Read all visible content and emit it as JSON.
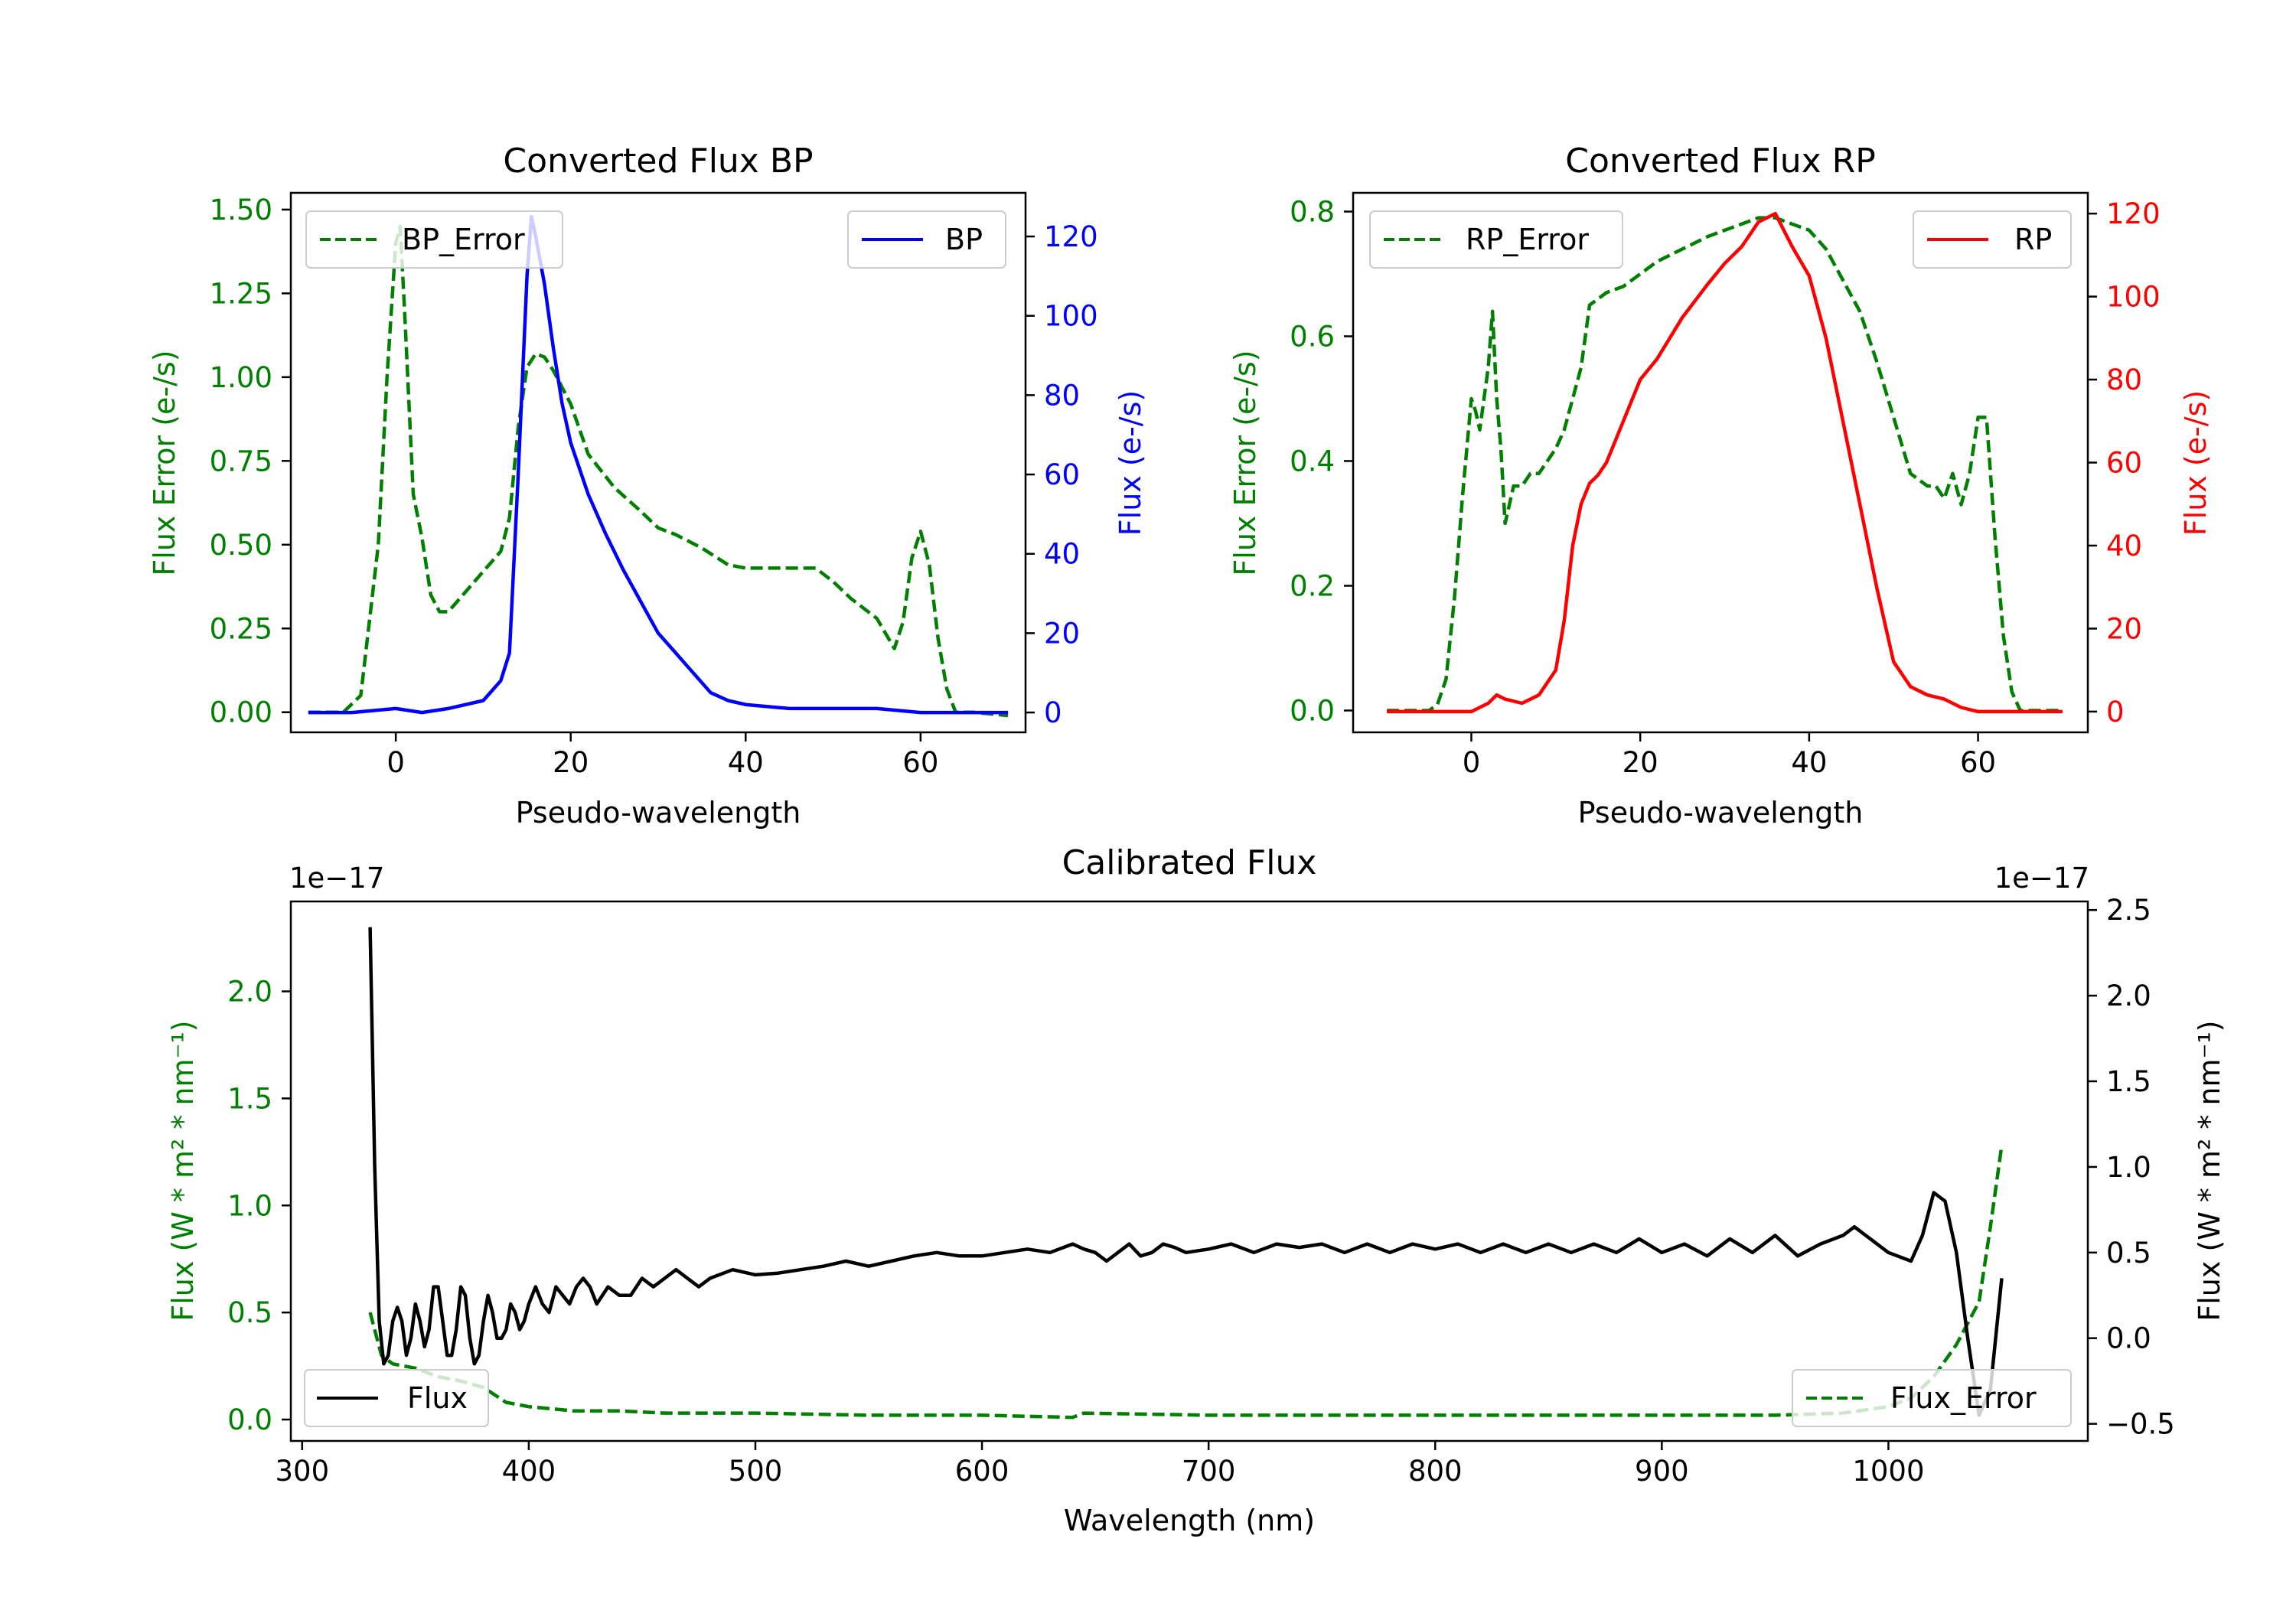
{
  "chart_data": [
    {
      "id": "bp",
      "type": "line",
      "title": "Converted Flux BP",
      "xlabel": "Pseudo-wavelength",
      "ylabel_left": "Flux Error (e-/s)",
      "ylabel_right": "Flux (e-/s)",
      "xlim": [
        -12,
        72
      ],
      "ylim_left": [
        -0.06,
        1.55
      ],
      "ylim_right": [
        -5,
        131
      ],
      "x_ticks": [
        0,
        20,
        40,
        60
      ],
      "yticks_left": [
        0.0,
        0.25,
        0.5,
        0.75,
        1.0,
        1.25,
        1.5
      ],
      "yticks_left_labels": [
        "0.00",
        "0.25",
        "0.50",
        "0.75",
        "1.00",
        "1.25",
        "1.50"
      ],
      "yticks_right": [
        0,
        20,
        40,
        60,
        80,
        100,
        120
      ],
      "colors": {
        "error": "#008000",
        "flux": "#0000ff"
      },
      "legend_error": "BP_Error",
      "legend_flux": "BP",
      "series_error": {
        "name": "BP_Error",
        "axis": "left",
        "x": [
          -10,
          -6,
          -4,
          -2,
          -1,
          0,
          0.5,
          1,
          2,
          3,
          4,
          5,
          6,
          8,
          10,
          12,
          13,
          14,
          15,
          16,
          17,
          18,
          20,
          22,
          25,
          28,
          30,
          32,
          35,
          38,
          40,
          45,
          48,
          50,
          52,
          55,
          57,
          58,
          59,
          60,
          61,
          62,
          63,
          64,
          66,
          70
        ],
        "y": [
          0.0,
          0.0,
          0.05,
          0.5,
          1.0,
          1.4,
          1.45,
          1.2,
          0.65,
          0.52,
          0.35,
          0.3,
          0.3,
          0.36,
          0.42,
          0.48,
          0.58,
          0.85,
          1.03,
          1.07,
          1.06,
          1.02,
          0.92,
          0.77,
          0.67,
          0.6,
          0.55,
          0.53,
          0.49,
          0.44,
          0.43,
          0.43,
          0.43,
          0.39,
          0.34,
          0.28,
          0.19,
          0.27,
          0.46,
          0.54,
          0.44,
          0.22,
          0.07,
          0.0,
          0.0,
          -0.01
        ]
      },
      "series_flux": {
        "name": "BP",
        "axis": "right",
        "x": [
          -10,
          -5,
          0,
          3,
          6,
          8,
          10,
          12,
          13,
          14,
          15,
          15.5,
          16,
          17,
          18,
          19,
          20,
          22,
          24,
          26,
          28,
          30,
          32,
          34,
          36,
          38,
          40,
          45,
          50,
          55,
          60,
          65,
          70
        ],
        "y": [
          0,
          0,
          1,
          0,
          1,
          2,
          3,
          8,
          15,
          60,
          110,
          125,
          120,
          108,
          92,
          78,
          68,
          55,
          45,
          36,
          28,
          20,
          15,
          10,
          5,
          3,
          2,
          1,
          1,
          1,
          0,
          0,
          0
        ]
      }
    },
    {
      "id": "rp",
      "type": "line",
      "title": "Converted Flux RP",
      "xlabel": "Pseudo-wavelength",
      "ylabel_left": "Flux Error (e-/s)",
      "ylabel_right": "Flux (e-/s)",
      "xlim": [
        -14,
        73
      ],
      "ylim_left": [
        -0.035,
        0.83
      ],
      "ylim_right": [
        -5,
        125
      ],
      "x_ticks": [
        0,
        20,
        40,
        60
      ],
      "yticks_left": [
        0.0,
        0.2,
        0.4,
        0.6,
        0.8
      ],
      "yticks_left_labels": [
        "0.0",
        "0.2",
        "0.4",
        "0.6",
        "0.8"
      ],
      "yticks_right": [
        0,
        20,
        40,
        60,
        80,
        100,
        120
      ],
      "colors": {
        "error": "#008000",
        "flux": "#ff0000"
      },
      "legend_error": "RP_Error",
      "legend_flux": "RP",
      "series_error": {
        "name": "RP_Error",
        "axis": "left",
        "x": [
          -10,
          -5,
          -4,
          -3,
          -2,
          -1,
          0,
          0.5,
          1,
          1.5,
          2,
          2.5,
          3,
          3.5,
          4,
          5,
          6,
          7,
          8,
          10,
          11,
          12,
          13,
          14,
          16,
          18,
          20,
          22,
          25,
          28,
          30,
          32,
          34,
          36,
          38,
          40,
          42,
          44,
          46,
          48,
          50,
          52,
          54,
          55,
          56,
          57,
          58,
          59,
          60,
          61,
          62,
          63,
          64,
          65,
          70
        ],
        "y": [
          0.0,
          0.0,
          0.01,
          0.05,
          0.18,
          0.35,
          0.5,
          0.48,
          0.45,
          0.5,
          0.55,
          0.64,
          0.5,
          0.42,
          0.3,
          0.36,
          0.36,
          0.38,
          0.38,
          0.42,
          0.45,
          0.5,
          0.55,
          0.65,
          0.67,
          0.68,
          0.7,
          0.72,
          0.74,
          0.76,
          0.77,
          0.78,
          0.79,
          0.79,
          0.78,
          0.77,
          0.74,
          0.69,
          0.64,
          0.56,
          0.47,
          0.38,
          0.36,
          0.36,
          0.34,
          0.38,
          0.33,
          0.38,
          0.47,
          0.47,
          0.28,
          0.12,
          0.03,
          0.0,
          0.0
        ]
      },
      "series_flux": {
        "name": "RP",
        "axis": "right",
        "x": [
          -10,
          -5,
          0,
          2,
          3,
          4,
          6,
          8,
          10,
          11,
          12,
          13,
          14,
          15,
          16,
          18,
          20,
          22,
          25,
          28,
          30,
          32,
          34,
          36,
          38,
          40,
          42,
          44,
          46,
          48,
          50,
          52,
          54,
          56,
          58,
          60,
          65,
          70
        ],
        "y": [
          0,
          0,
          0,
          2,
          4,
          3,
          2,
          4,
          10,
          22,
          40,
          50,
          55,
          57,
          60,
          70,
          80,
          85,
          95,
          103,
          108,
          112,
          118,
          120,
          112,
          105,
          90,
          70,
          50,
          30,
          12,
          6,
          4,
          3,
          1,
          0,
          0,
          0
        ]
      }
    },
    {
      "id": "cal",
      "type": "line",
      "title": "Calibrated Flux",
      "xlabel": "Wavelength (nm)",
      "ylabel_left": "Flux (W * m² * nm⁻¹)",
      "ylabel_right": "Flux (W * m² * nm⁻¹)",
      "offset_left": "1e−17",
      "offset_right": "1e−17",
      "xlim": [
        295,
        1088
      ],
      "ylim_left": [
        -0.1,
        2.42
      ],
      "ylim_right": [
        -0.6,
        2.55
      ],
      "x_ticks": [
        300,
        400,
        500,
        600,
        700,
        800,
        900,
        1000
      ],
      "yticks_left": [
        0.0,
        0.5,
        1.0,
        1.5,
        2.0
      ],
      "yticks_left_labels": [
        "0.0",
        "0.5",
        "1.0",
        "1.5",
        "2.0"
      ],
      "yticks_right": [
        -0.5,
        0.0,
        0.5,
        1.0,
        1.5,
        2.0,
        2.5
      ],
      "yticks_right_labels": [
        "−0.5",
        "0.0",
        "0.5",
        "1.0",
        "1.5",
        "2.0",
        "2.5"
      ],
      "colors": {
        "error": "#008000",
        "flux": "#000000"
      },
      "legend_error": "Flux_Error",
      "legend_flux": "Flux",
      "series_error": {
        "name": "Flux_Error",
        "axis": "left",
        "x": [
          330,
          335,
          340,
          350,
          360,
          370,
          380,
          390,
          400,
          410,
          420,
          440,
          460,
          500,
          550,
          600,
          640,
          645,
          700,
          800,
          900,
          950,
          980,
          1000,
          1010,
          1020,
          1030,
          1040,
          1045,
          1050
        ],
        "y": [
          0.5,
          0.3,
          0.26,
          0.24,
          0.2,
          0.18,
          0.15,
          0.08,
          0.06,
          0.05,
          0.04,
          0.04,
          0.03,
          0.03,
          0.02,
          0.02,
          0.01,
          0.03,
          0.02,
          0.02,
          0.02,
          0.02,
          0.03,
          0.06,
          0.1,
          0.2,
          0.35,
          0.55,
          0.9,
          1.28
        ]
      },
      "series_flux": {
        "name": "Flux",
        "axis": "right",
        "x": [
          330,
          332,
          334,
          336,
          338,
          340,
          342,
          344,
          346,
          348,
          350,
          352,
          354,
          356,
          358,
          360,
          362,
          364,
          366,
          368,
          370,
          372,
          374,
          376,
          378,
          380,
          382,
          384,
          386,
          388,
          390,
          392,
          394,
          396,
          398,
          400,
          403,
          406,
          409,
          412,
          415,
          418,
          421,
          424,
          427,
          430,
          435,
          440,
          445,
          450,
          455,
          460,
          465,
          470,
          475,
          480,
          490,
          500,
          510,
          520,
          530,
          540,
          550,
          560,
          570,
          580,
          590,
          600,
          610,
          620,
          630,
          640,
          645,
          650,
          655,
          660,
          665,
          670,
          675,
          680,
          685,
          690,
          700,
          710,
          720,
          730,
          740,
          750,
          760,
          770,
          780,
          790,
          800,
          810,
          820,
          830,
          840,
          850,
          860,
          870,
          880,
          890,
          900,
          910,
          920,
          930,
          940,
          950,
          960,
          970,
          980,
          985,
          990,
          1000,
          1010,
          1015,
          1020,
          1025,
          1030,
          1035,
          1040,
          1045,
          1050
        ],
        "y": [
          2.4,
          1.0,
          0.1,
          -0.15,
          -0.1,
          0.1,
          0.18,
          0.1,
          -0.1,
          0.0,
          0.2,
          0.1,
          -0.05,
          0.05,
          0.3,
          0.3,
          0.1,
          -0.1,
          -0.1,
          0.05,
          0.3,
          0.25,
          0.0,
          -0.15,
          -0.1,
          0.1,
          0.25,
          0.15,
          0.0,
          0.0,
          0.05,
          0.2,
          0.15,
          0.05,
          0.1,
          0.2,
          0.3,
          0.2,
          0.15,
          0.3,
          0.25,
          0.2,
          0.3,
          0.35,
          0.3,
          0.2,
          0.3,
          0.25,
          0.25,
          0.35,
          0.3,
          0.35,
          0.4,
          0.35,
          0.3,
          0.35,
          0.4,
          0.37,
          0.38,
          0.4,
          0.42,
          0.45,
          0.42,
          0.45,
          0.48,
          0.5,
          0.48,
          0.48,
          0.5,
          0.52,
          0.5,
          0.55,
          0.52,
          0.5,
          0.45,
          0.5,
          0.55,
          0.48,
          0.5,
          0.55,
          0.53,
          0.5,
          0.52,
          0.55,
          0.5,
          0.55,
          0.53,
          0.55,
          0.5,
          0.55,
          0.5,
          0.55,
          0.52,
          0.55,
          0.5,
          0.55,
          0.5,
          0.55,
          0.5,
          0.55,
          0.5,
          0.58,
          0.5,
          0.55,
          0.48,
          0.58,
          0.5,
          0.6,
          0.48,
          0.55,
          0.6,
          0.65,
          0.6,
          0.5,
          0.45,
          0.6,
          0.85,
          0.8,
          0.5,
          0.0,
          -0.45,
          -0.3,
          0.35
        ]
      }
    }
  ]
}
